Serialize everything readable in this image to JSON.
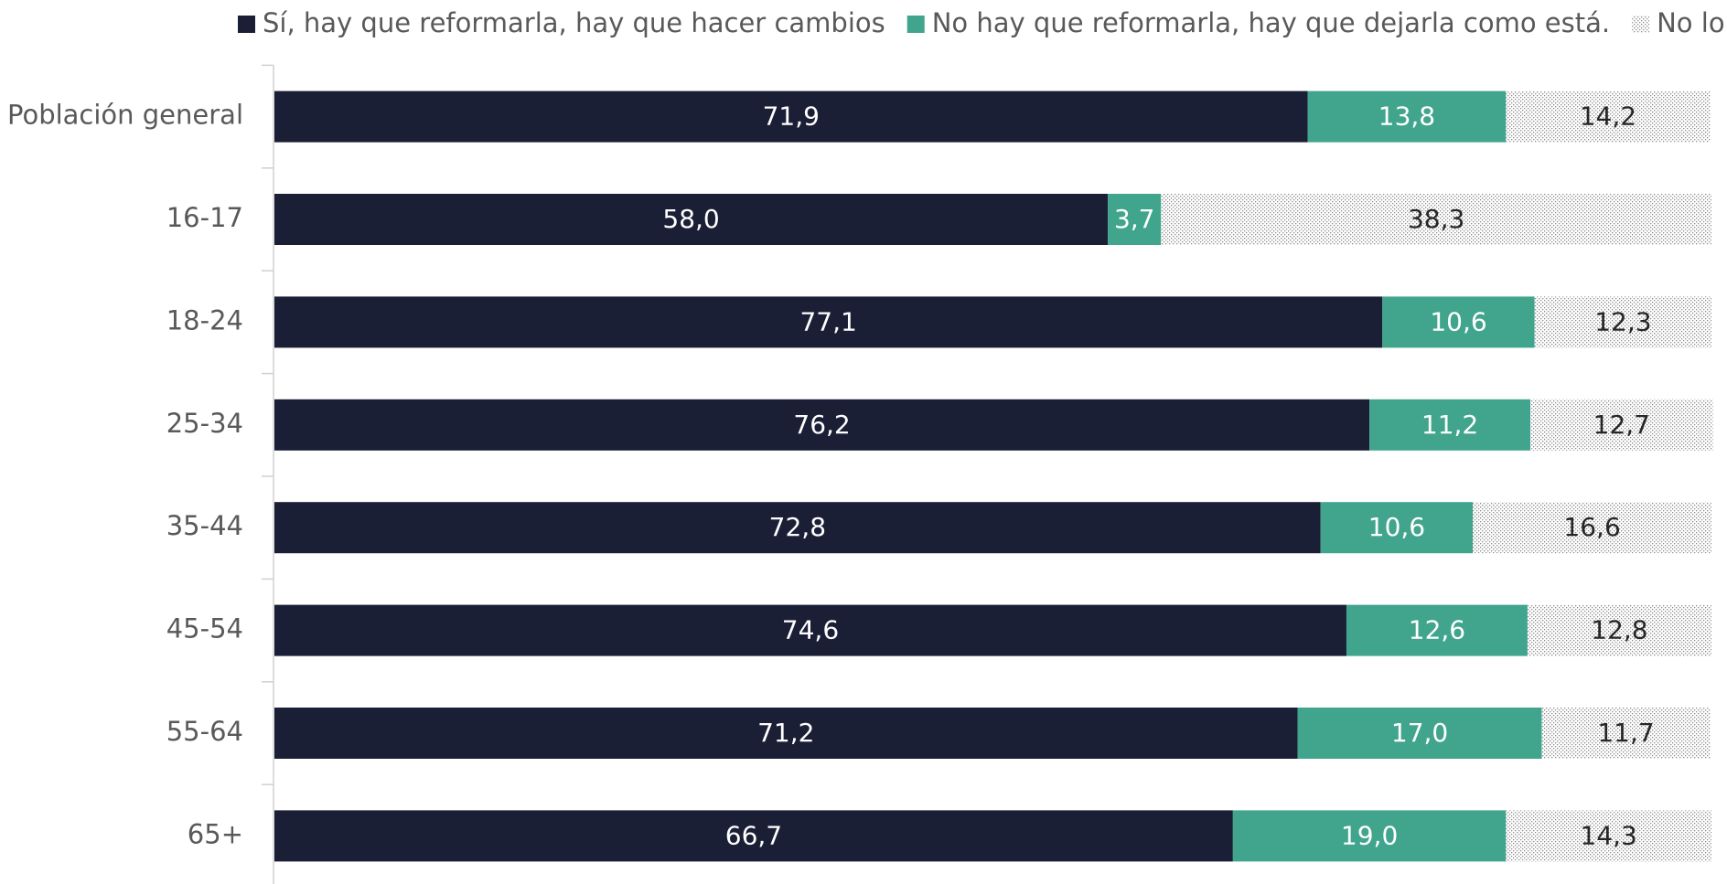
{
  "chart_data": {
    "type": "stacked-barh",
    "categories": [
      "Población general",
      "16-17",
      "18-24",
      "25-34",
      "35-44",
      "45-54",
      "55-64",
      "65+"
    ],
    "xlim": [
      0,
      100
    ],
    "legend": "top",
    "series": [
      {
        "name": "Sí, hay que reformarla, hay que hacer cambios",
        "color": "#1b1f36",
        "pattern": false,
        "values": [
          71.9,
          58.0,
          77.1,
          76.2,
          72.8,
          74.6,
          71.2,
          66.7
        ],
        "value_labels": [
          "71,9",
          "58,0",
          "77,1",
          "76,2",
          "72,8",
          "74,6",
          "71,2",
          "66,7"
        ]
      },
      {
        "name": "No hay que reformarla, hay que dejarla como está.",
        "color": "#41a58d",
        "pattern": false,
        "values": [
          13.8,
          3.7,
          10.6,
          11.2,
          10.6,
          12.6,
          17.0,
          19.0
        ],
        "value_labels": [
          "13,8",
          "3,7",
          "10,6",
          "11,2",
          "10,6",
          "12,6",
          "17,0",
          "19,0"
        ]
      },
      {
        "name": "No lo sé",
        "color": "#9a9a9a",
        "pattern": true,
        "values": [
          14.2,
          38.3,
          12.3,
          12.7,
          16.6,
          12.8,
          11.7,
          14.3
        ],
        "value_labels": [
          "14,2",
          "38,3",
          "12,3",
          "12,7",
          "16,6",
          "12,8",
          "11,7",
          "14,3"
        ]
      }
    ]
  }
}
